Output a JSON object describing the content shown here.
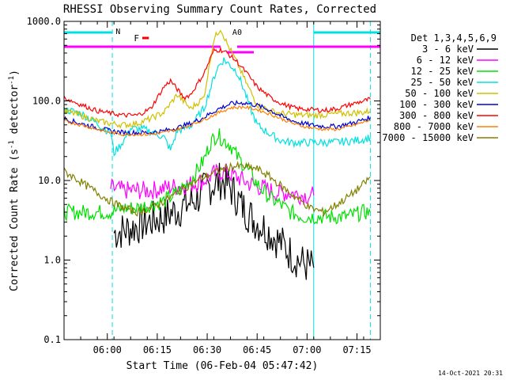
{
  "chart_data": {
    "type": "line",
    "title": "RHESSI Observing Summary Count Rates, Corrected",
    "xlabel": "Start Time (06-Feb-04 05:47:42)",
    "ylabel_main": "Corrected Count Rate (s",
    "ylabel_sup1": "-1",
    "ylabel_mid": " detector",
    "ylabel_sup2": "-1",
    "ylabel_end": ")",
    "y_scale": "log",
    "ylim": [
      0.1,
      1000
    ],
    "xlim_minutes_from_0547": [
      0,
      95
    ],
    "y_ticks": [
      {
        "v": 1000,
        "label": "1000.0"
      },
      {
        "v": 100,
        "label": "100.0"
      },
      {
        "v": 10,
        "label": "10.0"
      },
      {
        "v": 1,
        "label": "1.0"
      },
      {
        "v": 0.1,
        "label": "0.1"
      }
    ],
    "x_ticks": [
      {
        "m": 13,
        "label": "06:00"
      },
      {
        "m": 28,
        "label": "06:15"
      },
      {
        "m": 43,
        "label": "06:30"
      },
      {
        "m": 58,
        "label": "06:45"
      },
      {
        "m": 73,
        "label": "07:00"
      },
      {
        "m": 88,
        "label": "07:15"
      }
    ],
    "legend_title": "Det 1,3,4,5,6,9",
    "timestamp": "14-Oct-2021 20:31",
    "attenuator_bars": [
      {
        "label": "N",
        "color": "#00e0e0",
        "segments": [
          [
            0,
            14.5
          ],
          [
            75,
            95
          ]
        ]
      },
      {
        "label": "F",
        "color": "#ff00ff",
        "segments": [
          [
            0,
            47
          ],
          [
            52,
            95
          ]
        ]
      }
    ],
    "vlines": [
      {
        "m": 14.5,
        "color": "#00e0e0",
        "style": "dashed"
      },
      {
        "m": 75,
        "color": "#00e0e0",
        "style": "solid"
      },
      {
        "m": 92,
        "color": "#00e0e0",
        "style": "dashed"
      }
    ],
    "series": [
      {
        "name": "3 - 6 keV",
        "color": "#000000",
        "x": [
          15,
          20,
          25,
          30,
          35,
          40,
          43,
          45,
          47,
          49,
          51,
          53,
          55,
          57,
          60,
          63,
          66,
          69,
          72,
          75
        ],
        "y": [
          2.2,
          2.5,
          3,
          3.5,
          4.5,
          6,
          8,
          9,
          10,
          9,
          7,
          5,
          4,
          3.2,
          2.6,
          2,
          1.5,
          1.1,
          0.9,
          0.8
        ]
      },
      {
        "name": "6 - 12 keV",
        "color": "#ff00ff",
        "x": [
          14,
          18,
          22,
          26,
          30,
          34,
          38,
          42,
          45,
          48,
          52,
          56,
          60,
          64,
          68,
          72,
          75
        ],
        "y": [
          8,
          7.5,
          7.5,
          7.5,
          8,
          8.5,
          9,
          10,
          12,
          13,
          11,
          9,
          8,
          7,
          7,
          6.5,
          6.5
        ]
      },
      {
        "name": "12 - 25 keV",
        "color": "#00e000",
        "x": [
          0,
          10,
          14,
          18,
          22,
          26,
          30,
          34,
          38,
          42,
          44,
          46,
          48,
          50,
          52,
          55,
          58,
          62,
          65,
          68,
          72,
          76,
          80,
          85,
          90,
          92
        ],
        "y": [
          4,
          4,
          4,
          4.5,
          4.5,
          5,
          5.5,
          7,
          10,
          18,
          30,
          38,
          32,
          28,
          20,
          14,
          9,
          6,
          5,
          4,
          3.5,
          3.5,
          3.5,
          3.5,
          4,
          4
        ]
      },
      {
        "name": "25 - 50 keV",
        "color": "#00e0e0",
        "x": [
          0,
          5,
          10,
          12,
          14,
          15,
          18,
          20,
          24,
          27,
          30,
          32,
          34,
          38,
          42,
          46,
          48,
          50,
          52,
          54,
          56,
          58,
          62,
          65,
          68,
          72,
          75,
          80,
          85,
          90,
          92
        ],
        "y": [
          78,
          70,
          52,
          45,
          40,
          22,
          32,
          45,
          44,
          40,
          35,
          24,
          42,
          48,
          80,
          260,
          330,
          280,
          230,
          140,
          80,
          50,
          38,
          32,
          30,
          30,
          30,
          30,
          31,
          33,
          35
        ]
      },
      {
        "name": "50 - 100 keV",
        "color": "#d0c000",
        "x": [
          0,
          5,
          10,
          14,
          18,
          22,
          26,
          30,
          34,
          38,
          42,
          45,
          47,
          49,
          52,
          55,
          58,
          62,
          65,
          68,
          72,
          76,
          80,
          85,
          90,
          92
        ],
        "y": [
          75,
          66,
          56,
          52,
          50,
          52,
          60,
          72,
          120,
          80,
          110,
          600,
          820,
          520,
          300,
          160,
          90,
          75,
          70,
          68,
          66,
          66,
          68,
          70,
          72,
          75
        ]
      },
      {
        "name": "100 - 300 keV",
        "color": "#0000d0",
        "x": [
          0,
          5,
          10,
          14,
          18,
          22,
          26,
          30,
          34,
          38,
          42,
          46,
          50,
          54,
          58,
          62,
          66,
          70,
          74,
          78,
          82,
          86,
          90,
          92
        ],
        "y": [
          60,
          52,
          46,
          42,
          40,
          40,
          40,
          42,
          46,
          52,
          62,
          78,
          92,
          95,
          88,
          76,
          62,
          54,
          50,
          48,
          48,
          52,
          58,
          62
        ]
      },
      {
        "name": "300 - 800 keV",
        "color": "#ff0000",
        "x": [
          0,
          5,
          10,
          14,
          18,
          22,
          26,
          30,
          32,
          34,
          36,
          38,
          42,
          45,
          47,
          49,
          52,
          55,
          58,
          62,
          66,
          70,
          74,
          78,
          82,
          86,
          90,
          92
        ],
        "y": [
          110,
          90,
          75,
          70,
          66,
          66,
          80,
          150,
          180,
          140,
          110,
          120,
          220,
          430,
          440,
          400,
          310,
          220,
          150,
          110,
          90,
          80,
          78,
          76,
          80,
          90,
          100,
          105
        ]
      },
      {
        "name": "800 - 7000 keV",
        "color": "#ff8000",
        "x": [
          0,
          5,
          10,
          14,
          18,
          22,
          26,
          30,
          34,
          38,
          42,
          46,
          50,
          54,
          58,
          62,
          66,
          70,
          74,
          78,
          82,
          86,
          90,
          92
        ],
        "y": [
          56,
          50,
          44,
          40,
          38,
          38,
          38,
          40,
          44,
          50,
          58,
          70,
          82,
          84,
          78,
          68,
          58,
          50,
          46,
          44,
          44,
          48,
          54,
          58
        ]
      },
      {
        "name": "7000 - 15000 keV",
        "color": "#808000",
        "x": [
          0,
          3,
          6,
          10,
          14,
          18,
          22,
          26,
          30,
          34,
          38,
          42,
          46,
          50,
          54,
          58,
          62,
          66,
          70,
          74,
          78,
          82,
          86,
          90,
          92
        ],
        "y": [
          13,
          11,
          9,
          7,
          5.5,
          4.5,
          4,
          4.5,
          5.5,
          7,
          9,
          11,
          13,
          15,
          15,
          14,
          11,
          8,
          6,
          4.5,
          4,
          5,
          6.5,
          9,
          11
        ]
      }
    ],
    "annotations": [
      {
        "text": "A0",
        "color": "#ff00ff",
        "m": 52,
        "v": 680
      }
    ]
  }
}
